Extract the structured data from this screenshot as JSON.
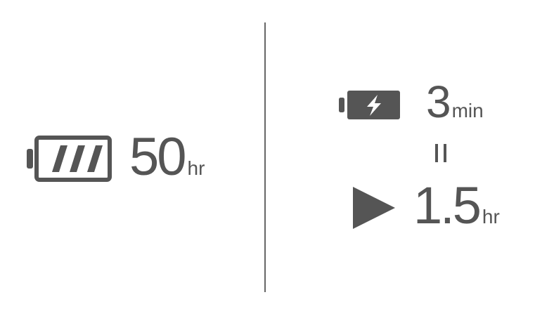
{
  "battery_life": {
    "icon": "battery-full-icon",
    "value": "50",
    "unit": "hr"
  },
  "quick_charge": {
    "icon": "battery-charging-icon",
    "value": "3",
    "unit": "min"
  },
  "equivalence": {
    "icon": "equals-icon"
  },
  "playback": {
    "icon": "play-icon",
    "value": "1.5",
    "unit": "hr"
  },
  "colors": {
    "foreground": "#555555",
    "divider": "#666666",
    "background": "#ffffff"
  }
}
